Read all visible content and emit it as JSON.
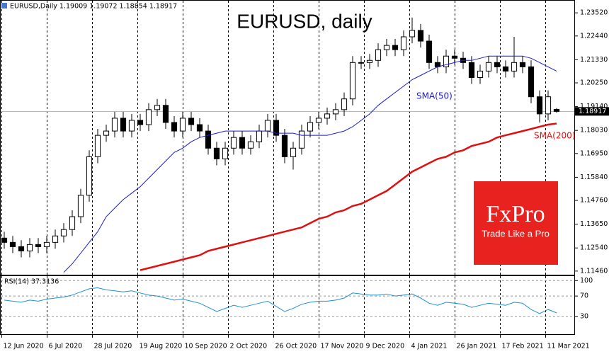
{
  "chart_data": [
    {
      "type": "candlestick",
      "title": "EURUSD, daily",
      "header": "EURUSD,Daily  1.19009 1.19072 1.18854 1.18917",
      "open": [
        1.13,
        1.128,
        1.126,
        1.124,
        1.127,
        1.126,
        1.128,
        1.131,
        1.134,
        1.14,
        1.15,
        1.168,
        1.178,
        1.18,
        1.186,
        1.18,
        1.185,
        1.183,
        1.19,
        1.192,
        1.184,
        1.18,
        1.186,
        1.183,
        1.18,
        1.172,
        1.167,
        1.172,
        1.177,
        1.172,
        1.175,
        1.18,
        1.185,
        1.178,
        1.168,
        1.172,
        1.18,
        1.184,
        1.186,
        1.188,
        1.19,
        1.195,
        1.212,
        1.212,
        1.213,
        1.218,
        1.22,
        1.218,
        1.224,
        1.227,
        1.222,
        1.212,
        1.21,
        1.215,
        1.214,
        1.212,
        1.205,
        1.208,
        1.212,
        1.21,
        1.208,
        1.212,
        1.21,
        1.196,
        1.188,
        1.19009
      ],
      "high": [
        1.133,
        1.131,
        1.129,
        1.13,
        1.13,
        1.131,
        1.134,
        1.137,
        1.143,
        1.153,
        1.171,
        1.181,
        1.183,
        1.189,
        1.189,
        1.188,
        1.188,
        1.193,
        1.195,
        1.195,
        1.187,
        1.189,
        1.189,
        1.186,
        1.183,
        1.175,
        1.175,
        1.18,
        1.18,
        1.178,
        1.183,
        1.188,
        1.188,
        1.181,
        1.175,
        1.183,
        1.187,
        1.189,
        1.191,
        1.193,
        1.198,
        1.215,
        1.215,
        1.216,
        1.221,
        1.223,
        1.223,
        1.227,
        1.233,
        1.23,
        1.225,
        1.215,
        1.218,
        1.218,
        1.217,
        1.215,
        1.211,
        1.215,
        1.215,
        1.213,
        1.224,
        1.215,
        1.213,
        1.199,
        1.199,
        1.19072
      ],
      "low": [
        1.125,
        1.123,
        1.121,
        1.121,
        1.123,
        1.123,
        1.125,
        1.128,
        1.131,
        1.137,
        1.147,
        1.165,
        1.175,
        1.177,
        1.177,
        1.177,
        1.18,
        1.18,
        1.187,
        1.181,
        1.177,
        1.177,
        1.18,
        1.177,
        1.169,
        1.164,
        1.164,
        1.169,
        1.169,
        1.169,
        1.172,
        1.177,
        1.175,
        1.165,
        1.162,
        1.169,
        1.177,
        1.181,
        1.183,
        1.185,
        1.187,
        1.192,
        1.209,
        1.209,
        1.21,
        1.215,
        1.215,
        1.215,
        1.221,
        1.219,
        1.209,
        1.207,
        1.207,
        1.211,
        1.209,
        1.202,
        1.202,
        1.205,
        1.207,
        1.205,
        1.205,
        1.207,
        1.193,
        1.184,
        1.185,
        1.18854
      ],
      "close": [
        1.128,
        1.126,
        1.124,
        1.127,
        1.126,
        1.128,
        1.131,
        1.134,
        1.14,
        1.15,
        1.168,
        1.178,
        1.18,
        1.186,
        1.18,
        1.185,
        1.183,
        1.19,
        1.192,
        1.184,
        1.18,
        1.186,
        1.183,
        1.18,
        1.172,
        1.167,
        1.172,
        1.177,
        1.172,
        1.175,
        1.18,
        1.185,
        1.178,
        1.168,
        1.172,
        1.18,
        1.184,
        1.186,
        1.188,
        1.19,
        1.195,
        1.212,
        1.212,
        1.213,
        1.218,
        1.22,
        1.218,
        1.224,
        1.227,
        1.222,
        1.212,
        1.21,
        1.215,
        1.214,
        1.212,
        1.205,
        1.208,
        1.212,
        1.21,
        1.208,
        1.212,
        1.21,
        1.196,
        1.188,
        1.196,
        1.18917
      ],
      "series": [
        {
          "name": "SMA(50)",
          "color": "#1a1ad8",
          "values": [
            null,
            null,
            null,
            null,
            null,
            null,
            null,
            1.114,
            1.118,
            1.123,
            1.128,
            1.133,
            1.14,
            1.144,
            1.148,
            1.151,
            1.154,
            1.158,
            1.162,
            1.166,
            1.17,
            1.172,
            1.175,
            1.177,
            1.178,
            1.179,
            1.18,
            1.18,
            1.18,
            1.18,
            1.18,
            1.18,
            1.179,
            1.179,
            1.179,
            1.178,
            1.178,
            1.178,
            1.178,
            1.179,
            1.18,
            1.182,
            1.185,
            1.188,
            1.192,
            1.195,
            1.198,
            1.201,
            1.204,
            1.206,
            1.208,
            1.21,
            1.211,
            1.212,
            1.213,
            1.213,
            1.214,
            1.215,
            1.215,
            1.215,
            1.215,
            1.215,
            1.214,
            1.212,
            1.21,
            1.208
          ]
        },
        {
          "name": "SMA(200)",
          "color": "#e01010",
          "values": [
            null,
            null,
            null,
            null,
            null,
            null,
            null,
            null,
            null,
            null,
            null,
            null,
            null,
            null,
            null,
            null,
            1.115,
            1.116,
            1.117,
            1.118,
            1.119,
            1.12,
            1.121,
            1.122,
            1.124,
            1.125,
            1.126,
            1.127,
            1.128,
            1.129,
            1.13,
            1.131,
            1.132,
            1.133,
            1.134,
            1.135,
            1.137,
            1.139,
            1.14,
            1.142,
            1.143,
            1.145,
            1.146,
            1.148,
            1.15,
            1.152,
            1.155,
            1.158,
            1.161,
            1.163,
            1.165,
            1.167,
            1.168,
            1.17,
            1.171,
            1.173,
            1.174,
            1.175,
            1.177,
            1.178,
            1.179,
            1.18,
            1.181,
            1.182,
            1.183,
            1.1835
          ]
        }
      ],
      "last_price": {
        "value": 1.18917,
        "label": "1.18917"
      },
      "xlim": [
        -0.5,
        65.5
      ],
      "xticks": [
        {
          "value": -0.33,
          "label": "12 Jun 2020"
        },
        {
          "value": 5,
          "label": "6 Jul 2020"
        },
        {
          "value": 10.33,
          "label": "28 Jul 2020"
        },
        {
          "value": 15.67,
          "label": "19 Aug 2020"
        },
        {
          "value": 21,
          "label": "10 Sep 2020"
        },
        {
          "value": 26.33,
          "label": "2 Oct 2020"
        },
        {
          "value": 31.67,
          "label": "26 Oct 2020"
        },
        {
          "value": 37,
          "label": "17 Nov 2020"
        },
        {
          "value": 42.33,
          "label": "9 Dec 2020"
        },
        {
          "value": 47.67,
          "label": "4 Jan 2021"
        },
        {
          "value": 53,
          "label": "26 Jan 2021"
        },
        {
          "value": 58.33,
          "label": "17 Feb 2021"
        },
        {
          "value": 63.67,
          "label": "11 Mar 2021"
        }
      ],
      "ylim": [
        1.1129,
        1.2412
      ],
      "yticks": [
        {
          "value": 1.2352,
          "label": "1.23520"
        },
        {
          "value": 1.2244,
          "label": "1.22440"
        },
        {
          "value": 1.2133,
          "label": "1.21330"
        },
        {
          "value": 1.2025,
          "label": "1.20250"
        },
        {
          "value": 1.1914,
          "label": "1.19140"
        },
        {
          "value": 1.1803,
          "label": "1.18030"
        },
        {
          "value": 1.1695,
          "label": "1.16950"
        },
        {
          "value": 1.1584,
          "label": "1.15840"
        },
        {
          "value": 1.1476,
          "label": "1.14760"
        },
        {
          "value": 1.1365,
          "label": "1.13650"
        },
        {
          "value": 1.1254,
          "label": "1.12540"
        },
        {
          "value": 1.1146,
          "label": "1.11460"
        }
      ],
      "grid": "x",
      "watermark": {
        "brand": "FxPro",
        "tagline": "Trade Like a Pro",
        "color": "#e8231f"
      }
    },
    {
      "type": "line",
      "title": "RSI(14) 37.3136",
      "color": "#1e8fd6",
      "values": [
        62,
        60,
        58,
        62,
        60,
        64,
        66,
        68,
        72,
        78,
        84,
        86,
        82,
        80,
        78,
        80,
        76,
        72,
        70,
        66,
        62,
        64,
        60,
        56,
        48,
        40,
        46,
        52,
        48,
        52,
        56,
        60,
        50,
        40,
        46,
        54,
        58,
        60,
        60,
        62,
        66,
        76,
        74,
        72,
        72,
        74,
        70,
        72,
        74,
        66,
        56,
        52,
        58,
        56,
        54,
        48,
        52,
        56,
        54,
        52,
        58,
        56,
        44,
        36,
        44,
        37.3136
      ],
      "ylim": [
        -4,
        110
      ],
      "yticks": [
        100,
        70,
        30
      ],
      "grid": "x"
    }
  ]
}
